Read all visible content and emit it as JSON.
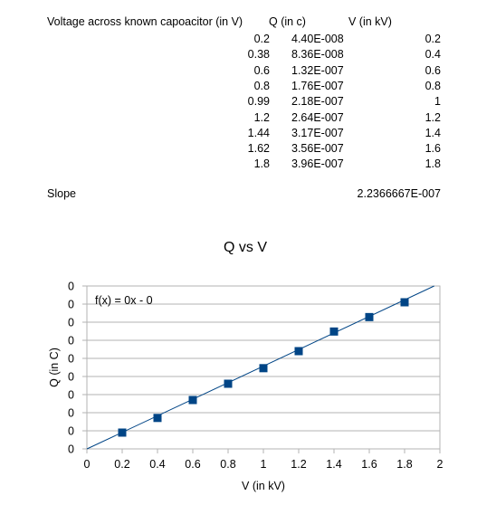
{
  "sheet": {
    "headers": [
      "Voltage across known capoacitor (in V)",
      "Q (in c)",
      "V (in kV)"
    ],
    "rows": [
      [
        "0.2",
        "4.40E-008",
        "0.2"
      ],
      [
        "0.38",
        "8.36E-008",
        "0.4"
      ],
      [
        "0.6",
        "1.32E-007",
        "0.6"
      ],
      [
        "0.8",
        "1.76E-007",
        "0.8"
      ],
      [
        "0.99",
        "2.18E-007",
        "1"
      ],
      [
        "1.2",
        "2.64E-007",
        "1.2"
      ],
      [
        "1.44",
        "3.17E-007",
        "1.4"
      ],
      [
        "1.62",
        "3.56E-007",
        "1.6"
      ],
      [
        "1.8",
        "3.96E-007",
        "1.8"
      ]
    ],
    "slope_label": "Slope",
    "slope_value": "2.2366667E-007"
  },
  "chart_data": {
    "type": "scatter",
    "title": "Q vs V",
    "xlabel": "V (in kV)",
    "ylabel": "Q (in C)",
    "xlim": [
      0,
      2
    ],
    "ylim": [
      0,
      4.4e-07
    ],
    "x_ticks": [
      "0",
      "0.2",
      "0.4",
      "0.6",
      "0.8",
      "1",
      "1.2",
      "1.4",
      "1.6",
      "1.8",
      "2"
    ],
    "y_ticks": [
      "0",
      "0",
      "0",
      "0",
      "0",
      "0",
      "0",
      "0",
      "0",
      "0"
    ],
    "grid": true,
    "marker_color": "#004586",
    "trendline_color": "#004586",
    "trendline_label": "f(x) = 0x - 0",
    "trendline": {
      "slope": 2.2366667e-07,
      "intercept": -1e-10
    },
    "series": [
      {
        "x": [
          0.2,
          0.4,
          0.6,
          0.8,
          1.0,
          1.2,
          1.4,
          1.6,
          1.8
        ],
        "y": [
          4.4e-08,
          8.36e-08,
          1.32e-07,
          1.76e-07,
          2.18e-07,
          2.64e-07,
          3.17e-07,
          3.56e-07,
          3.96e-07
        ]
      }
    ]
  }
}
